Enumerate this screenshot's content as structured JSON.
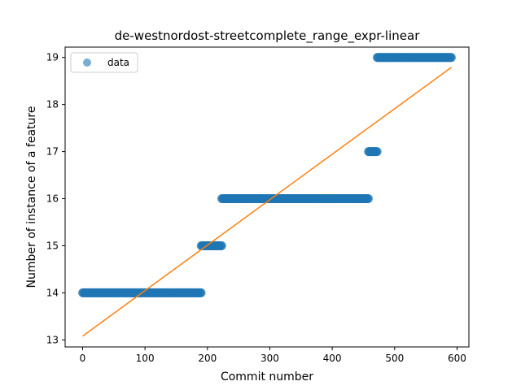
{
  "chart_data": {
    "type": "scatter",
    "title": "de-westnordost-streetcomplete_range_expr-linear",
    "xlabel": "Commit number",
    "ylabel": "Number of instance of a feature",
    "xlim": [
      -28,
      619
    ],
    "ylim": [
      12.85,
      19.22
    ],
    "xticks": [
      0,
      100,
      200,
      300,
      400,
      500,
      600
    ],
    "yticks": [
      13,
      14,
      15,
      16,
      17,
      18,
      19
    ],
    "grid": false,
    "legend": {
      "placement": "top-left",
      "entries": [
        "data"
      ]
    },
    "series": [
      {
        "name": "data",
        "kind": "points",
        "color": "#1f77b4",
        "segments": [
          {
            "x_start": 0,
            "x_end": 190,
            "y": 14
          },
          {
            "x_start": 190,
            "x_end": 223,
            "y": 15
          },
          {
            "x_start": 223,
            "x_end": 458,
            "y": 16
          },
          {
            "x_start": 458,
            "x_end": 472,
            "y": 17
          },
          {
            "x_start": 472,
            "x_end": 591,
            "y": 19
          }
        ]
      },
      {
        "kind": "line",
        "color": "#ff7f0e",
        "x": [
          0,
          591
        ],
        "y": [
          13.08,
          18.79
        ]
      }
    ]
  }
}
